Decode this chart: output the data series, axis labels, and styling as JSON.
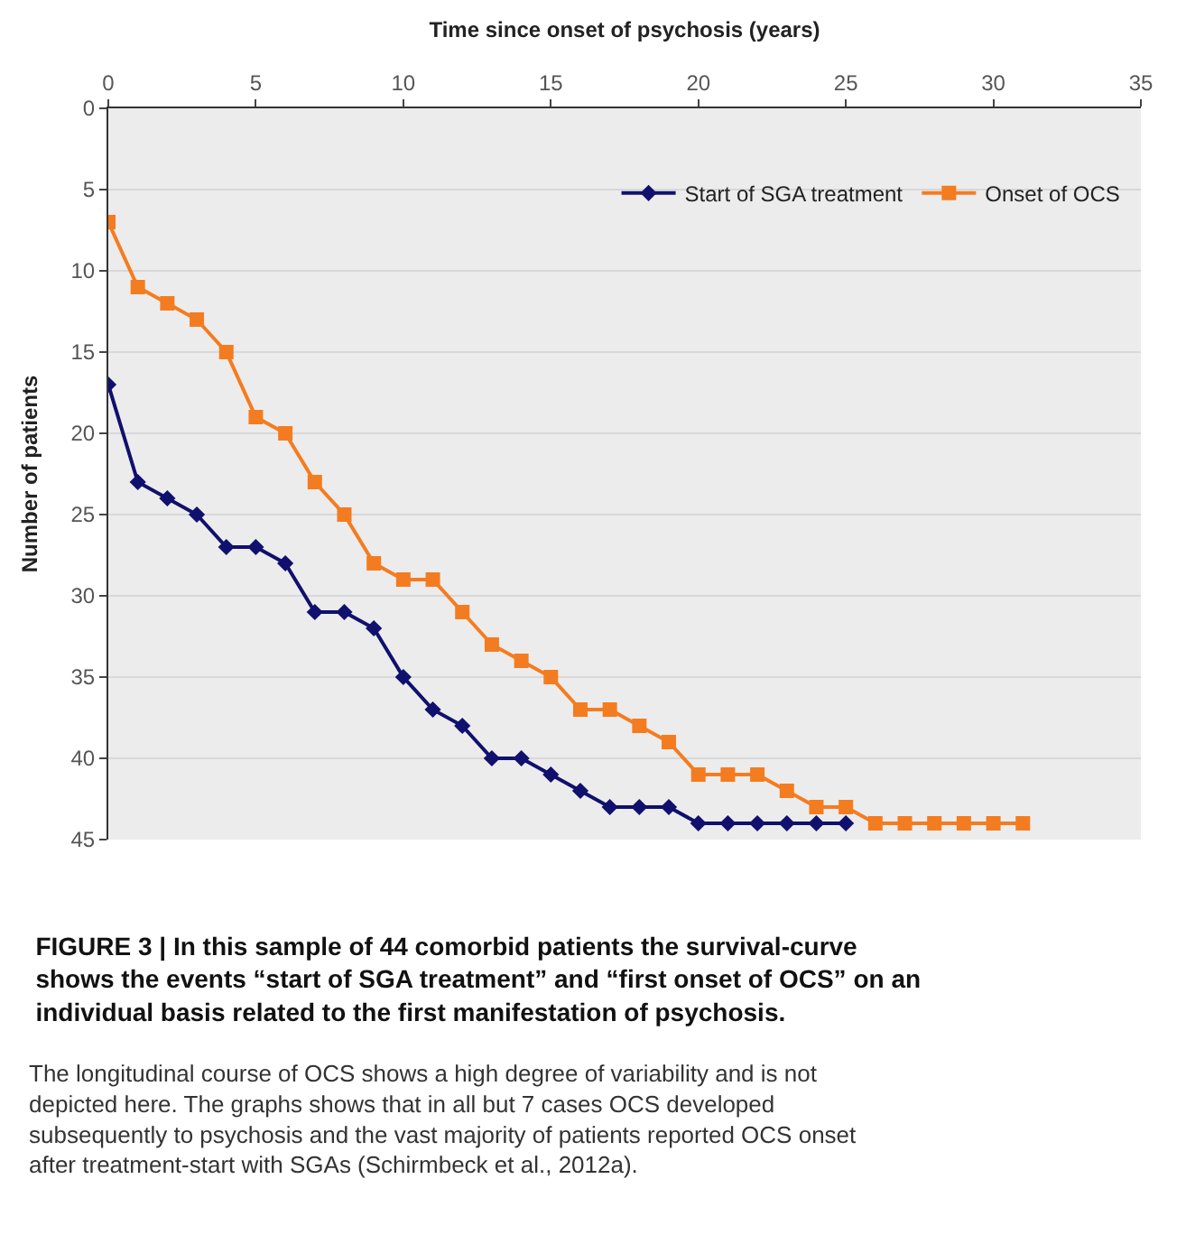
{
  "chart_data": {
    "type": "line",
    "title": "FIGURE 3 | In this sample of 44 comorbid patients the survival-curve shows the events “start of SGA treatment” and “first onset of OCS” on an individual basis related to the first manifestation of psychosis.",
    "xlabel": "Time since onset of psychosis (years)",
    "ylabel": "Number of patients",
    "annotations": [
      "The longitudinal course of OCS shows a high degree of variability and is not depicted here. The graphs shows that in all but 7 cases OCS developed subsequently to psychosis and the vast majority of patients reported OCS onset after treatment-start with SGAs (Schirmbeck et al., 2012a)."
    ],
    "xlim": [
      0,
      35
    ],
    "xticks": [
      0,
      5,
      10,
      15,
      20,
      25,
      30,
      35
    ],
    "ylim": [
      45,
      0
    ],
    "yticks": [
      0,
      5,
      10,
      15,
      20,
      25,
      30,
      35,
      40,
      45
    ],
    "grid": "y",
    "legend": "top right",
    "series": [
      {
        "name": "Start of SGA treatment",
        "color": "#10106e",
        "marker": "diamond",
        "x": [
          0,
          1,
          2,
          3,
          4,
          5,
          6,
          7,
          8,
          9,
          10,
          11,
          12,
          13,
          14,
          15,
          16,
          17,
          18,
          19,
          20,
          21,
          22,
          23,
          24,
          25
        ],
        "values": [
          17,
          23,
          24,
          25,
          27,
          27,
          28,
          31,
          31,
          32,
          35,
          37,
          38,
          40,
          40,
          41,
          42,
          43,
          43,
          43,
          44,
          44,
          44,
          44,
          44,
          44
        ]
      },
      {
        "name": "Onset of OCS",
        "color": "#f47c20",
        "marker": "square",
        "x": [
          0,
          1,
          2,
          3,
          4,
          5,
          6,
          7,
          8,
          9,
          10,
          11,
          12,
          13,
          14,
          15,
          16,
          17,
          18,
          19,
          20,
          21,
          22,
          23,
          24,
          25,
          26,
          27,
          28,
          29,
          30,
          31
        ],
        "values": [
          7,
          11,
          12,
          13,
          15,
          19,
          20,
          23,
          25,
          28,
          29,
          29,
          31,
          33,
          34,
          35,
          37,
          37,
          38,
          39,
          41,
          41,
          41,
          42,
          43,
          43,
          44,
          44,
          44,
          44,
          44,
          44
        ]
      }
    ]
  }
}
